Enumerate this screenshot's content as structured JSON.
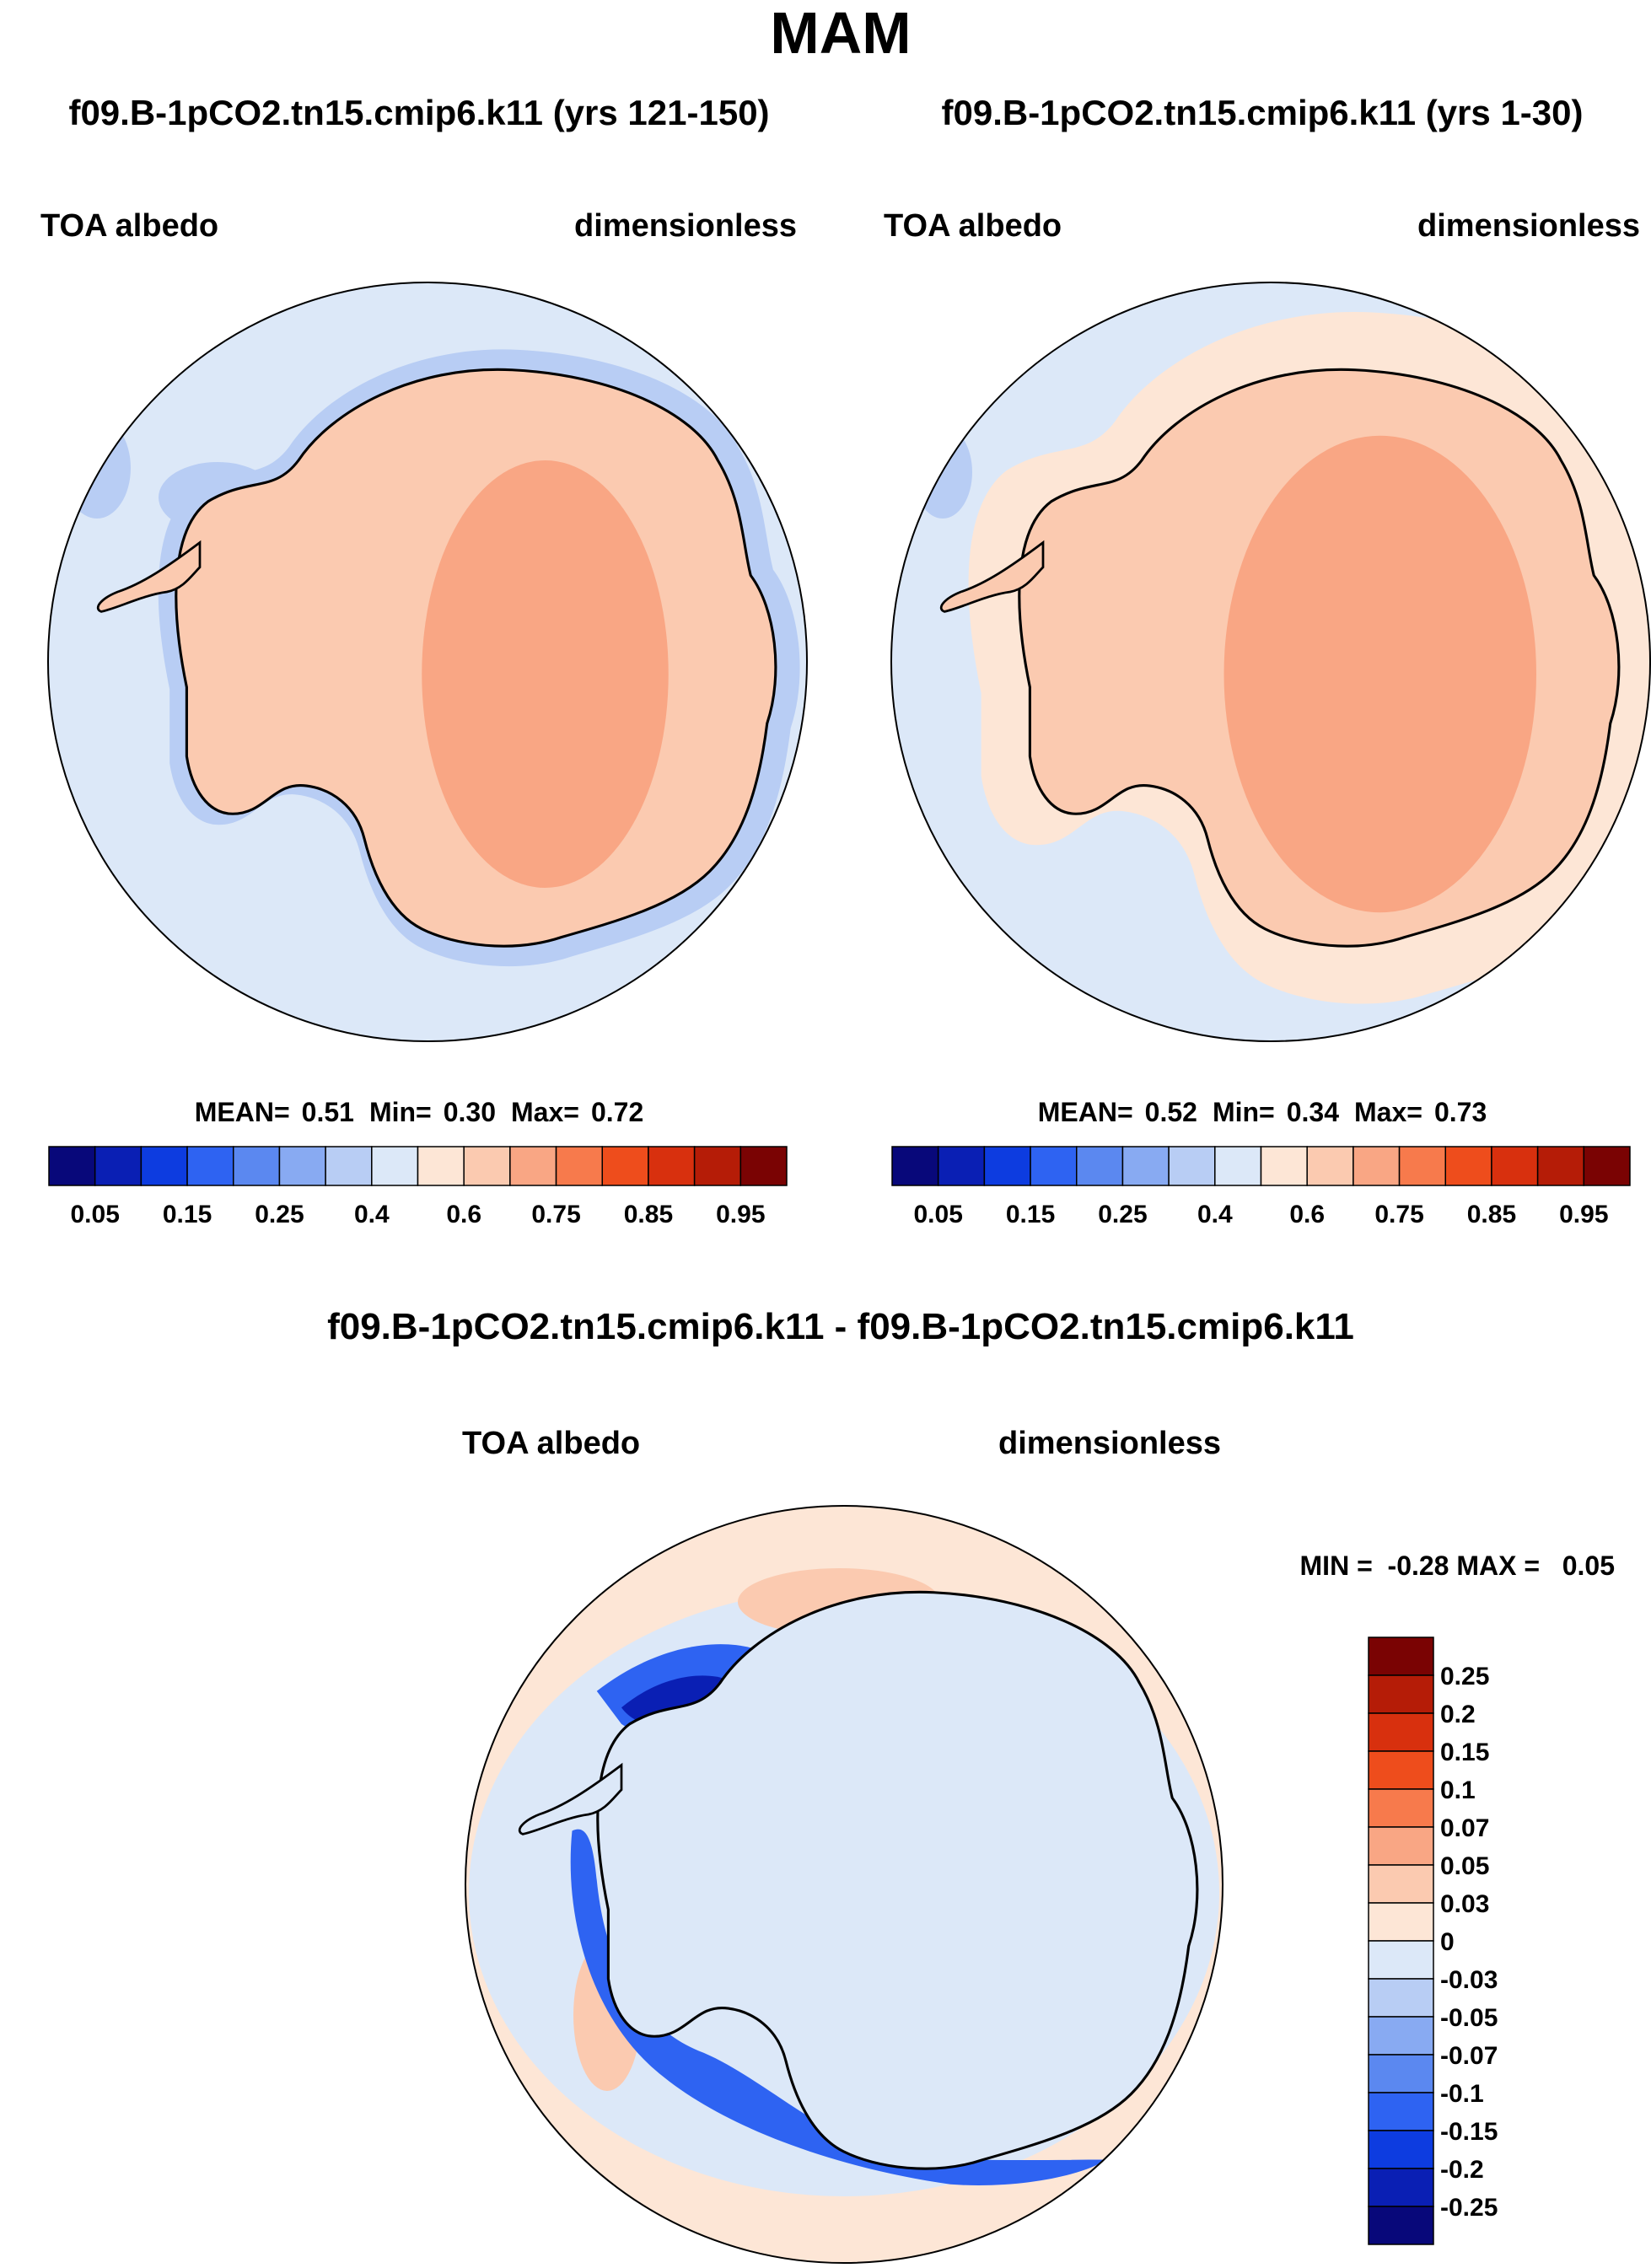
{
  "figure": {
    "title": "MAM",
    "panels": [
      {
        "id": "p1",
        "case_title": "f09.B-1pCO2.tn15.cmip6.k11 (yrs 121-150)",
        "variable": "TOA albedo",
        "units": "dimensionless",
        "stats": {
          "mean_label": "MEAN=",
          "mean": "0.51",
          "min_label": "Min=",
          "min": "0.30",
          "max_label": "Max=",
          "max": "0.72"
        }
      },
      {
        "id": "p2",
        "case_title": "f09.B-1pCO2.tn15.cmip6.k11 (yrs 1-30)",
        "variable": "TOA albedo",
        "units": "dimensionless",
        "stats": {
          "mean_label": "MEAN=",
          "mean": "0.52",
          "min_label": "Min=",
          "min": "0.34",
          "max_label": "Max=",
          "max": "0.73"
        }
      }
    ],
    "diff_panel": {
      "case_title": "f09.B-1pCO2.tn15.cmip6.k11 - f09.B-1pCO2.tn15.cmip6.k11",
      "variable": "TOA albedo",
      "units": "dimensionless",
      "minmax_label": "MIN =  -0.28 MAX =   0.05"
    },
    "colorbar_abs": {
      "colors": [
        "#08087a",
        "#0a1fb4",
        "#0d3ce0",
        "#2e63f2",
        "#5b88f0",
        "#88aaf2",
        "#b8cdf4",
        "#dce8f8",
        "#fde6d6",
        "#fbcab0",
        "#f9a684",
        "#f77a4c",
        "#ee4d1c",
        "#d8300e",
        "#b51c07",
        "#7a0303"
      ],
      "labels": [
        "0.05",
        "0.15",
        "0.25",
        "0.4",
        "0.6",
        "0.75",
        "0.85",
        "0.95"
      ]
    },
    "colorbar_diff": {
      "colors": [
        "#7a0303",
        "#b51c07",
        "#d8300e",
        "#ee4d1c",
        "#f77a4c",
        "#f9a684",
        "#fbcab0",
        "#fde6d6",
        "#dce8f8",
        "#b8cdf4",
        "#88aaf2",
        "#5b88f0",
        "#2e63f2",
        "#0d3ce0",
        "#0a1fb4",
        "#08087a"
      ],
      "labels": [
        "0.25",
        "0.2",
        "0.15",
        "0.1",
        "0.07",
        "0.05",
        "0.03",
        "0",
        "-0.03",
        "-0.05",
        "-0.07",
        "-0.1",
        "-0.15",
        "-0.2",
        "-0.25"
      ]
    }
  }
}
